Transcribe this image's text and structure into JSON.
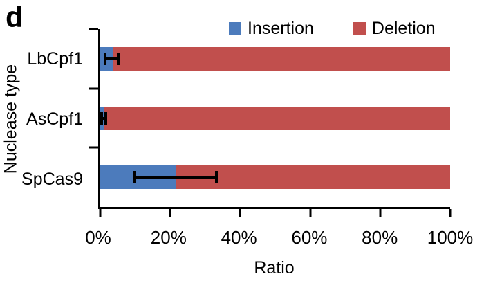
{
  "panel_label": "d",
  "legend": {
    "items": [
      {
        "label": "Insertion",
        "color": "#4C7BBC"
      },
      {
        "label": "Deletion",
        "color": "#C14F4D"
      }
    ]
  },
  "chart_data": {
    "type": "bar",
    "orientation": "horizontal",
    "stacked": true,
    "title": "",
    "xlabel": "Ratio",
    "ylabel": "Nuclease type",
    "categories": [
      "LbCpf1",
      "AsCpf1",
      "SpCas9"
    ],
    "x_tick_labels": [
      "0%",
      "20%",
      "40%",
      "60%",
      "80%",
      "100%"
    ],
    "xlim": [
      0,
      100
    ],
    "grid": false,
    "legend_position": "top",
    "series": [
      {
        "name": "Insertion",
        "color": "#4C7BBC",
        "values": [
          3.5,
          1.0,
          21.5
        ]
      },
      {
        "name": "Deletion",
        "color": "#C14F4D",
        "values": [
          96.5,
          99.0,
          78.5
        ]
      }
    ],
    "error_bars": {
      "on_series": "Insertion",
      "low": [
        1.0,
        0.0,
        9.5
      ],
      "high": [
        5.5,
        2.0,
        33.5
      ]
    }
  }
}
